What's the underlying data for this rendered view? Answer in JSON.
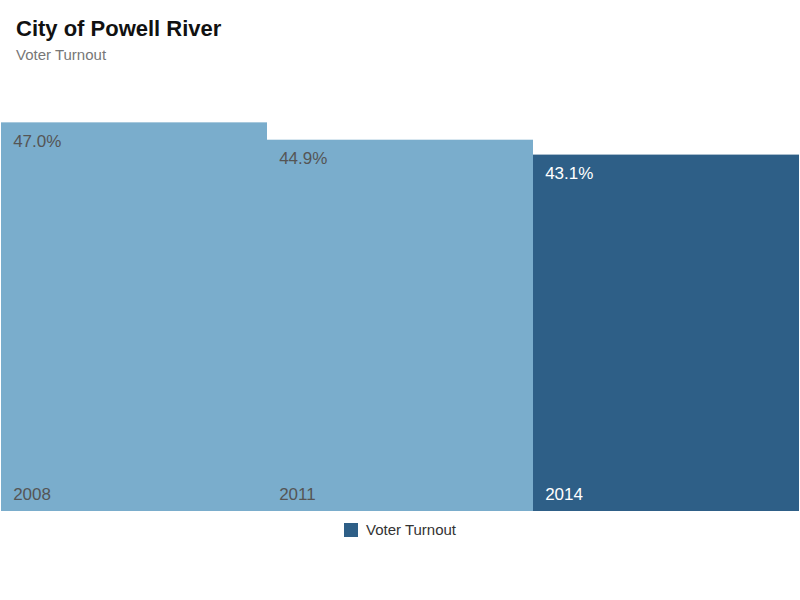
{
  "chart_data": {
    "type": "bar",
    "title": "City of Powell River",
    "subtitle": "Voter Turnout",
    "categories": [
      "2008",
      "2011",
      "2014"
    ],
    "series": [
      {
        "name": "Voter Turnout",
        "values": [
          47.0,
          44.9,
          43.1
        ],
        "colors": [
          "#7aadcc",
          "#7aadcc",
          "#2e5f87"
        ],
        "value_labels": [
          "47.0%",
          "44.9%",
          "43.1%"
        ]
      }
    ],
    "ylim": [
      0,
      52
    ],
    "data_labels": true,
    "tick_labels": false,
    "legend": "bottom",
    "grid": false
  }
}
